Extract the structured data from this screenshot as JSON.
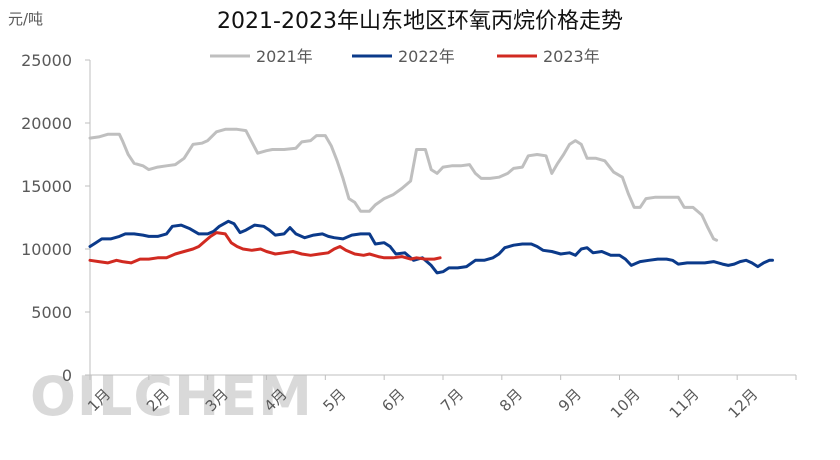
{
  "chart_data": {
    "type": "line",
    "title": "2021-2023年山东地区环氧丙烷价格走势",
    "unit_label": "元/吨",
    "watermark": "OILCHEM",
    "ylim": [
      0,
      25000
    ],
    "yticks": [
      "0",
      "5000",
      "10000",
      "15000",
      "20000",
      "25000"
    ],
    "x_categories": [
      "1月",
      "2月",
      "3月",
      "4月",
      "5月",
      "6月",
      "7月",
      "8月",
      "9月",
      "10月",
      "11月",
      "12月"
    ],
    "grid": false,
    "legend_position": "top",
    "series": [
      {
        "name": "2021年",
        "color": "#bfbfbf",
        "points": [
          [
            0.0,
            18800
          ],
          [
            0.15,
            18900
          ],
          [
            0.3,
            19100
          ],
          [
            0.5,
            19100
          ],
          [
            0.55,
            18600
          ],
          [
            0.65,
            17500
          ],
          [
            0.75,
            16800
          ],
          [
            0.9,
            16600
          ],
          [
            1.0,
            16300
          ],
          [
            1.15,
            16500
          ],
          [
            1.3,
            16600
          ],
          [
            1.45,
            16700
          ],
          [
            1.6,
            17200
          ],
          [
            1.75,
            18300
          ],
          [
            1.9,
            18400
          ],
          [
            2.0,
            18600
          ],
          [
            2.15,
            19300
          ],
          [
            2.3,
            19500
          ],
          [
            2.5,
            19500
          ],
          [
            2.65,
            19400
          ],
          [
            2.75,
            18500
          ],
          [
            2.85,
            17600
          ],
          [
            3.0,
            17800
          ],
          [
            3.1,
            17900
          ],
          [
            3.3,
            17900
          ],
          [
            3.5,
            18000
          ],
          [
            3.6,
            18500
          ],
          [
            3.75,
            18600
          ],
          [
            3.85,
            19000
          ],
          [
            4.0,
            19000
          ],
          [
            4.1,
            18200
          ],
          [
            4.2,
            17000
          ],
          [
            4.3,
            15600
          ],
          [
            4.4,
            14000
          ],
          [
            4.5,
            13700
          ],
          [
            4.6,
            13000
          ],
          [
            4.75,
            13000
          ],
          [
            4.85,
            13500
          ],
          [
            5.0,
            14000
          ],
          [
            5.15,
            14300
          ],
          [
            5.3,
            14800
          ],
          [
            5.45,
            15400
          ],
          [
            5.55,
            17900
          ],
          [
            5.7,
            17900
          ],
          [
            5.8,
            16300
          ],
          [
            5.9,
            16000
          ],
          [
            6.0,
            16500
          ],
          [
            6.15,
            16600
          ],
          [
            6.3,
            16600
          ],
          [
            6.45,
            16700
          ],
          [
            6.55,
            16000
          ],
          [
            6.65,
            15600
          ],
          [
            6.8,
            15600
          ],
          [
            6.95,
            15700
          ],
          [
            7.1,
            16000
          ],
          [
            7.2,
            16400
          ],
          [
            7.35,
            16500
          ],
          [
            7.45,
            17400
          ],
          [
            7.6,
            17500
          ],
          [
            7.75,
            17400
          ],
          [
            7.85,
            16000
          ],
          [
            7.95,
            16800
          ],
          [
            8.05,
            17500
          ],
          [
            8.15,
            18300
          ],
          [
            8.25,
            18600
          ],
          [
            8.35,
            18300
          ],
          [
            8.45,
            17200
          ],
          [
            8.6,
            17200
          ],
          [
            8.75,
            17000
          ],
          [
            8.9,
            16100
          ],
          [
            9.05,
            15700
          ],
          [
            9.15,
            14400
          ],
          [
            9.25,
            13300
          ],
          [
            9.35,
            13300
          ],
          [
            9.45,
            14000
          ],
          [
            9.6,
            14100
          ],
          [
            9.8,
            14100
          ],
          [
            10.0,
            14100
          ],
          [
            10.1,
            13300
          ],
          [
            10.25,
            13300
          ],
          [
            10.4,
            12700
          ],
          [
            10.5,
            11700
          ],
          [
            10.6,
            10800
          ],
          [
            10.65,
            10700
          ]
        ]
      },
      {
        "name": "2022年",
        "color": "#0b3a8a",
        "points": [
          [
            0.0,
            10200
          ],
          [
            0.1,
            10500
          ],
          [
            0.2,
            10800
          ],
          [
            0.35,
            10800
          ],
          [
            0.5,
            11000
          ],
          [
            0.6,
            11200
          ],
          [
            0.75,
            11200
          ],
          [
            0.9,
            11100
          ],
          [
            1.0,
            11000
          ],
          [
            1.15,
            11000
          ],
          [
            1.3,
            11200
          ],
          [
            1.4,
            11800
          ],
          [
            1.55,
            11900
          ],
          [
            1.7,
            11600
          ],
          [
            1.85,
            11200
          ],
          [
            2.0,
            11200
          ],
          [
            2.1,
            11400
          ],
          [
            2.2,
            11800
          ],
          [
            2.35,
            12200
          ],
          [
            2.45,
            12000
          ],
          [
            2.55,
            11300
          ],
          [
            2.65,
            11500
          ],
          [
            2.8,
            11900
          ],
          [
            2.95,
            11800
          ],
          [
            3.05,
            11500
          ],
          [
            3.15,
            11100
          ],
          [
            3.3,
            11200
          ],
          [
            3.4,
            11700
          ],
          [
            3.5,
            11200
          ],
          [
            3.65,
            10900
          ],
          [
            3.8,
            11100
          ],
          [
            3.95,
            11200
          ],
          [
            4.05,
            11000
          ],
          [
            4.15,
            10900
          ],
          [
            4.3,
            10800
          ],
          [
            4.45,
            11100
          ],
          [
            4.6,
            11200
          ],
          [
            4.75,
            11200
          ],
          [
            4.85,
            10400
          ],
          [
            5.0,
            10500
          ],
          [
            5.1,
            10200
          ],
          [
            5.2,
            9600
          ],
          [
            5.35,
            9700
          ],
          [
            5.5,
            9100
          ],
          [
            5.65,
            9300
          ],
          [
            5.8,
            8700
          ],
          [
            5.9,
            8100
          ],
          [
            6.0,
            8200
          ],
          [
            6.1,
            8500
          ],
          [
            6.25,
            8500
          ],
          [
            6.4,
            8600
          ],
          [
            6.55,
            9100
          ],
          [
            6.7,
            9100
          ],
          [
            6.85,
            9300
          ],
          [
            6.95,
            9600
          ],
          [
            7.05,
            10100
          ],
          [
            7.2,
            10300
          ],
          [
            7.35,
            10400
          ],
          [
            7.5,
            10400
          ],
          [
            7.6,
            10200
          ],
          [
            7.7,
            9900
          ],
          [
            7.85,
            9800
          ],
          [
            8.0,
            9600
          ],
          [
            8.15,
            9700
          ],
          [
            8.25,
            9500
          ],
          [
            8.35,
            10000
          ],
          [
            8.45,
            10100
          ],
          [
            8.55,
            9700
          ],
          [
            8.7,
            9800
          ],
          [
            8.85,
            9500
          ],
          [
            9.0,
            9500
          ],
          [
            9.1,
            9200
          ],
          [
            9.2,
            8700
          ],
          [
            9.35,
            9000
          ],
          [
            9.5,
            9100
          ],
          [
            9.65,
            9200
          ],
          [
            9.8,
            9200
          ],
          [
            9.9,
            9100
          ],
          [
            10.0,
            8800
          ],
          [
            10.15,
            8900
          ],
          [
            10.3,
            8900
          ],
          [
            10.45,
            8900
          ],
          [
            10.6,
            9000
          ],
          [
            10.75,
            8800
          ],
          [
            10.85,
            8700
          ],
          [
            10.95,
            8800
          ],
          [
            11.05,
            9000
          ],
          [
            11.15,
            9100
          ],
          [
            11.25,
            8900
          ],
          [
            11.35,
            8600
          ],
          [
            11.45,
            8900
          ],
          [
            11.55,
            9100
          ],
          [
            11.6,
            9100
          ]
        ]
      },
      {
        "name": "2023年",
        "color": "#d12a21",
        "points": [
          [
            0.0,
            9100
          ],
          [
            0.15,
            9000
          ],
          [
            0.3,
            8900
          ],
          [
            0.45,
            9100
          ],
          [
            0.55,
            9000
          ],
          [
            0.7,
            8900
          ],
          [
            0.85,
            9200
          ],
          [
            1.0,
            9200
          ],
          [
            1.15,
            9300
          ],
          [
            1.3,
            9300
          ],
          [
            1.45,
            9600
          ],
          [
            1.6,
            9800
          ],
          [
            1.75,
            10000
          ],
          [
            1.85,
            10200
          ],
          [
            1.95,
            10600
          ],
          [
            2.05,
            11000
          ],
          [
            2.15,
            11300
          ],
          [
            2.3,
            11200
          ],
          [
            2.4,
            10500
          ],
          [
            2.5,
            10200
          ],
          [
            2.6,
            10000
          ],
          [
            2.75,
            9900
          ],
          [
            2.9,
            10000
          ],
          [
            3.0,
            9800
          ],
          [
            3.15,
            9600
          ],
          [
            3.3,
            9700
          ],
          [
            3.45,
            9800
          ],
          [
            3.6,
            9600
          ],
          [
            3.75,
            9500
          ],
          [
            3.9,
            9600
          ],
          [
            4.05,
            9700
          ],
          [
            4.15,
            10000
          ],
          [
            4.25,
            10200
          ],
          [
            4.35,
            9900
          ],
          [
            4.5,
            9600
          ],
          [
            4.65,
            9500
          ],
          [
            4.75,
            9600
          ],
          [
            4.9,
            9400
          ],
          [
            5.0,
            9300
          ],
          [
            5.15,
            9300
          ],
          [
            5.3,
            9400
          ],
          [
            5.45,
            9200
          ],
          [
            5.55,
            9300
          ],
          [
            5.7,
            9200
          ],
          [
            5.85,
            9200
          ],
          [
            5.95,
            9300
          ]
        ]
      }
    ]
  }
}
